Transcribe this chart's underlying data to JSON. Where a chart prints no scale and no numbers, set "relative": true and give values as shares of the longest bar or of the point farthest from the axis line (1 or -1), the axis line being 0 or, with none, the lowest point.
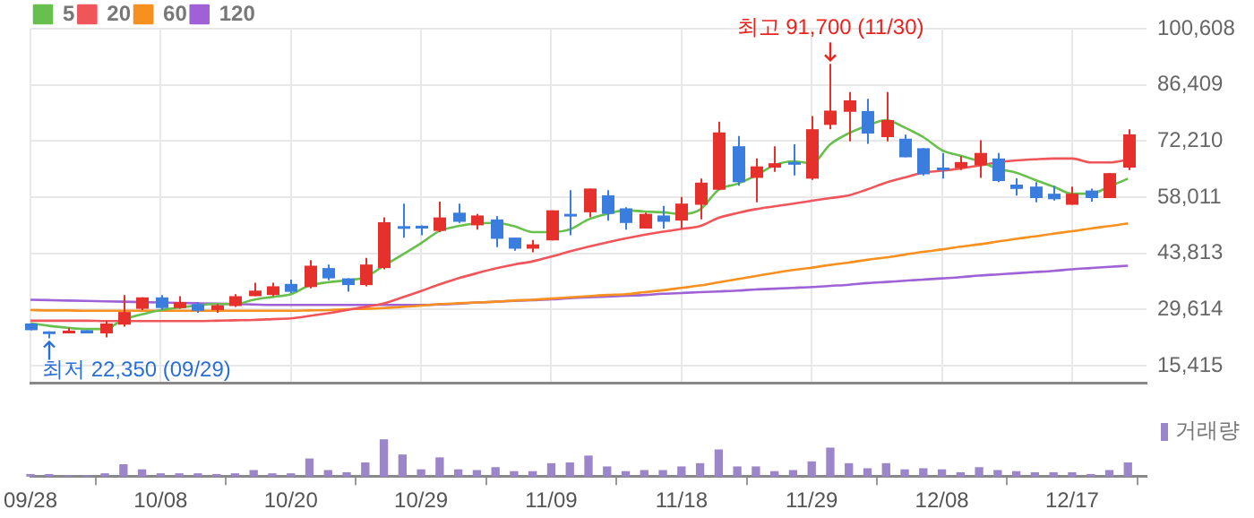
{
  "chart_data": [
    {
      "type": "candlestick",
      "categories": [
        "09/28",
        null,
        null,
        null,
        null,
        null,
        null,
        "10/08",
        null,
        null,
        null,
        null,
        null,
        null,
        "10/20",
        null,
        null,
        null,
        null,
        null,
        null,
        "10/29",
        null,
        null,
        null,
        null,
        null,
        null,
        "11/09",
        null,
        null,
        null,
        null,
        null,
        null,
        "11/18",
        null,
        null,
        null,
        null,
        null,
        null,
        "11/29",
        null,
        null,
        null,
        null,
        null,
        null,
        "12/08",
        null,
        null,
        null,
        null,
        null,
        null,
        "12/17",
        null,
        null,
        null
      ],
      "ohlc": [
        [
          26100,
          26100,
          24400,
          24400
        ],
        [
          24100,
          24100,
          22350,
          23600
        ],
        [
          23600,
          25000,
          23600,
          24300
        ],
        [
          24400,
          24400,
          23600,
          23600
        ],
        [
          23600,
          26700,
          22600,
          26100
        ],
        [
          25800,
          33300,
          25300,
          29000
        ],
        [
          29800,
          32700,
          29500,
          32700
        ],
        [
          32700,
          33300,
          29500,
          30000
        ],
        [
          30000,
          33000,
          29800,
          31500
        ],
        [
          31000,
          31500,
          28800,
          29300
        ],
        [
          29500,
          31000,
          28800,
          30700
        ],
        [
          30500,
          33500,
          30300,
          33000
        ],
        [
          33000,
          36400,
          33000,
          34400
        ],
        [
          33300,
          36400,
          33000,
          35500
        ],
        [
          36100,
          37200,
          33800,
          34100
        ],
        [
          35300,
          42100,
          35000,
          40700
        ],
        [
          40100,
          41000,
          37000,
          37500
        ],
        [
          37500,
          37500,
          34100,
          35800
        ],
        [
          35800,
          42700,
          35500,
          41000
        ],
        [
          40100,
          52900,
          39800,
          51700
        ],
        [
          50700,
          56400,
          47800,
          50100
        ],
        [
          50800,
          50900,
          48400,
          50100
        ],
        [
          49500,
          56900,
          49200,
          52900
        ],
        [
          54100,
          56400,
          51500,
          51800
        ],
        [
          50900,
          53800,
          49800,
          53400
        ],
        [
          52400,
          53200,
          45400,
          47500
        ],
        [
          47800,
          47800,
          44500,
          45000
        ],
        [
          45000,
          47200,
          44100,
          46100
        ],
        [
          47100,
          54700,
          47100,
          54700
        ],
        [
          53800,
          59800,
          48400,
          53500
        ],
        [
          54200,
          60200,
          52900,
          60200
        ],
        [
          58500,
          59800,
          52100,
          53800
        ],
        [
          55200,
          55500,
          49800,
          51500
        ],
        [
          50100,
          54100,
          50100,
          53800
        ],
        [
          53400,
          55800,
          50100,
          51800
        ],
        [
          52100,
          58100,
          50100,
          56400
        ],
        [
          56100,
          62700,
          52400,
          61700
        ],
        [
          59900,
          77100,
          59900,
          74400
        ],
        [
          70900,
          73500,
          60900,
          61800
        ],
        [
          62900,
          67800,
          56700,
          65800
        ],
        [
          65500,
          70900,
          64400,
          66600
        ],
        [
          66900,
          71400,
          63500,
          66400
        ],
        [
          62700,
          78500,
          62400,
          75200
        ],
        [
          76300,
          91700,
          75200,
          79900
        ],
        [
          79600,
          84600,
          72100,
          82500
        ],
        [
          79800,
          82900,
          71500,
          74100
        ],
        [
          73200,
          84600,
          72100,
          77500
        ],
        [
          72800,
          73800,
          68100,
          68100
        ],
        [
          70400,
          70400,
          63500,
          63800
        ],
        [
          65500,
          69200,
          62700,
          65200
        ],
        [
          65400,
          68400,
          64900,
          66900
        ],
        [
          66100,
          72400,
          62900,
          69200
        ],
        [
          67800,
          69200,
          61800,
          62100
        ],
        [
          61200,
          62800,
          58400,
          60100
        ],
        [
          60700,
          61800,
          56700,
          57800
        ],
        [
          58900,
          60900,
          57200,
          57500
        ],
        [
          56100,
          60700,
          56100,
          58900
        ],
        [
          59700,
          60200,
          56900,
          57800
        ],
        [
          57800,
          64100,
          57800,
          64100
        ],
        [
          65500,
          75200,
          64900,
          73900
        ]
      ],
      "colors": [
        "#3b7ddd",
        "#3b7ddd",
        "#e5302b",
        "#3b7ddd",
        "#e5302b",
        "#e5302b",
        "#e5302b",
        "#3b7ddd",
        "#e5302b",
        "#3b7ddd",
        "#e5302b",
        "#e5302b",
        "#e5302b",
        "#e5302b",
        "#3b7ddd",
        "#e5302b",
        "#3b7ddd",
        "#3b7ddd",
        "#e5302b",
        "#e5302b",
        "#3b7ddd",
        "#3b7ddd",
        "#e5302b",
        "#3b7ddd",
        "#e5302b",
        "#3b7ddd",
        "#3b7ddd",
        "#e5302b",
        "#e5302b",
        "#3b7ddd",
        "#e5302b",
        "#3b7ddd",
        "#3b7ddd",
        "#e5302b",
        "#3b7ddd",
        "#e5302b",
        "#e5302b",
        "#e5302b",
        "#3b7ddd",
        "#e5302b",
        "#e5302b",
        "#3b7ddd",
        "#e5302b",
        "#e5302b",
        "#e5302b",
        "#3b7ddd",
        "#e5302b",
        "#3b7ddd",
        "#3b7ddd",
        "#3b7ddd",
        "#e5302b",
        "#e5302b",
        "#3b7ddd",
        "#3b7ddd",
        "#3b7ddd",
        "#3b7ddd",
        "#e5302b",
        "#3b7ddd",
        "#e5302b",
        "#e5302b"
      ],
      "series": [
        {
          "name": "5",
          "type": "line",
          "color": "#66c04b",
          "values": [
            26100,
            25500,
            25000,
            24700,
            24700,
            27100,
            28400,
            29500,
            30100,
            30700,
            31000,
            31000,
            32100,
            32800,
            33500,
            35700,
            36500,
            37000,
            37800,
            40700,
            43500,
            46400,
            49500,
            50700,
            51400,
            51500,
            50700,
            49200,
            49200,
            49900,
            52400,
            53800,
            54700,
            54400,
            54200,
            53800,
            54900,
            59900,
            61400,
            63500,
            66100,
            67100,
            66600,
            71400,
            74200,
            76100,
            77500,
            75600,
            73200,
            69900,
            68500,
            67100,
            65200,
            64200,
            62400,
            60700,
            58900,
            58900,
            60700,
            62700
          ]
        },
        {
          "name": "20",
          "type": "line",
          "color": "#f0555a",
          "values": [
            26800,
            26800,
            26800,
            26800,
            26700,
            26700,
            26700,
            26700,
            26700,
            26700,
            26800,
            26900,
            27000,
            27200,
            27400,
            28000,
            28700,
            29500,
            30300,
            31200,
            32700,
            34300,
            36000,
            37500,
            38800,
            40000,
            41000,
            41800,
            43000,
            44300,
            45500,
            46600,
            47600,
            48500,
            49300,
            50000,
            50700,
            52800,
            54000,
            55000,
            55700,
            56400,
            57100,
            57800,
            58500,
            60000,
            61700,
            63000,
            64200,
            64700,
            65300,
            66000,
            66800,
            67300,
            67600,
            67800,
            67800,
            66800,
            66800,
            67500
          ]
        },
        {
          "name": "60",
          "type": "line",
          "color": "#f7901e",
          "values": [
            29500,
            29400,
            29400,
            29300,
            29300,
            29300,
            29300,
            29300,
            29300,
            29300,
            29300,
            29300,
            29300,
            29300,
            29300,
            29400,
            29500,
            29700,
            29800,
            30000,
            30300,
            30600,
            31000,
            31200,
            31400,
            31600,
            31900,
            32100,
            32400,
            32700,
            33000,
            33300,
            33500,
            34000,
            34500,
            35100,
            35700,
            36500,
            37300,
            38100,
            38900,
            39600,
            40200,
            40900,
            41500,
            42200,
            42800,
            43500,
            44200,
            44800,
            45500,
            46100,
            46800,
            47500,
            48100,
            48800,
            49400,
            50100,
            50700,
            51400
          ]
        },
        {
          "name": "120",
          "type": "line",
          "color": "#9e62d6",
          "values": [
            32100,
            32000,
            31900,
            31800,
            31700,
            31600,
            31500,
            31400,
            31300,
            31200,
            31100,
            31000,
            30900,
            30800,
            30800,
            30800,
            30800,
            30800,
            30800,
            30800,
            30800,
            30800,
            30900,
            31100,
            31400,
            31600,
            31800,
            32000,
            32200,
            32500,
            32700,
            32900,
            33100,
            33300,
            33600,
            33800,
            34000,
            34200,
            34400,
            34700,
            34900,
            35100,
            35300,
            35600,
            35900,
            36300,
            36600,
            36900,
            37200,
            37500,
            37800,
            38200,
            38500,
            38800,
            39100,
            39400,
            39800,
            40100,
            40400,
            40700
          ]
        }
      ],
      "ylim": [
        11000,
        100608
      ],
      "yticks": [
        {
          "value": 15415,
          "label": "15,415"
        },
        {
          "value": 29614,
          "label": "29,614"
        },
        {
          "value": 43813,
          "label": "43,813"
        },
        {
          "value": 58011,
          "label": "58,011"
        },
        {
          "value": 72210,
          "label": "72,210"
        },
        {
          "value": 86409,
          "label": "86,409"
        },
        {
          "value": 100608,
          "label": "100,608"
        }
      ],
      "grid": true,
      "legend": "top left",
      "tick_labels": "y",
      "marker": "none",
      "annotations": [
        {
          "text": "최고 91,700 (11/30)",
          "y": 91700
        },
        "최저 22,350 (09/29)"
      ]
    },
    {
      "type": "bar",
      "categories": [
        "09/28",
        null,
        null,
        null,
        null,
        null,
        null,
        "10/08",
        null,
        null,
        null,
        null,
        null,
        null,
        "10/20",
        null,
        null,
        null,
        null,
        null,
        null,
        "10/29",
        null,
        null,
        null,
        null,
        null,
        null,
        "11/09",
        null,
        null,
        null,
        null,
        null,
        null,
        "11/18",
        null,
        null,
        null,
        null,
        null,
        null,
        "11/29",
        null,
        null,
        null,
        null,
        null,
        null,
        "12/08",
        null,
        null,
        null,
        null,
        null,
        null,
        "12/17",
        null,
        null,
        null
      ],
      "series": [
        {
          "name": "거래량",
          "color": "#9a86c8",
          "values": [
            0.04,
            0.04,
            0,
            0,
            0.06,
            0.31,
            0.17,
            0.06,
            0.06,
            0.06,
            0.04,
            0.06,
            0.15,
            0.06,
            0.06,
            0.47,
            0.15,
            0.09,
            0.36,
            1,
            0.58,
            0.17,
            0.5,
            0.17,
            0.15,
            0.23,
            0.12,
            0.12,
            0.34,
            0.36,
            0.55,
            0.25,
            0.12,
            0.15,
            0.15,
            0.25,
            0.34,
            0.72,
            0.25,
            0.25,
            0.12,
            0.15,
            0.39,
            0.77,
            0.34,
            0.2,
            0.34,
            0.17,
            0.2,
            0.17,
            0.09,
            0.23,
            0.15,
            0.12,
            0.09,
            0.09,
            0.09,
            0.04,
            0.15,
            0.36
          ]
        }
      ],
      "relative": true,
      "legend": "top right",
      "tick_labels": "x"
    }
  ]
}
